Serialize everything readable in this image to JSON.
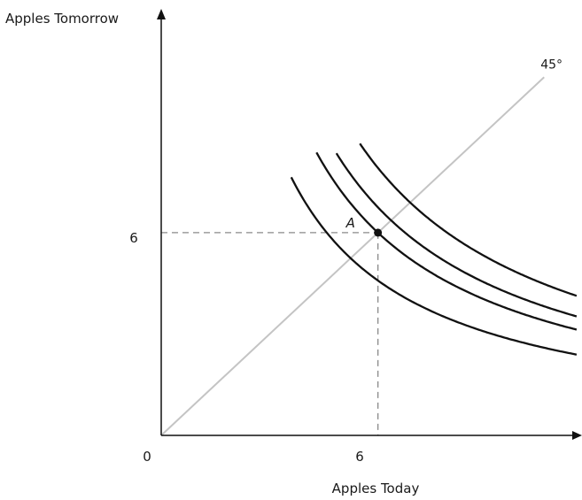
{
  "chart_data": {
    "type": "line",
    "ylabel": "Apples Tomorrow",
    "xlabel": "Apples Today",
    "origin_label": "0",
    "x_ticks": [
      "6"
    ],
    "y_ticks": [
      "6"
    ],
    "xlim": [
      0,
      11.6
    ],
    "ylim": [
      0,
      12.1
    ],
    "diagonal": {
      "label": "45°",
      "from": [
        0,
        0
      ],
      "to": [
        10.6,
        10.6
      ],
      "color": "#c4c4c4"
    },
    "point": {
      "label": "A",
      "x": 6,
      "y": 6
    },
    "guides": {
      "x": 6,
      "y": 6,
      "dashed": true,
      "color": "#8a8a8a"
    },
    "indifference_curves": [
      {
        "k": 27.5,
        "x": [
          3.6,
          11.5
        ]
      },
      {
        "k": 36.0,
        "x": [
          4.3,
          11.5
        ]
      },
      {
        "k": 40.5,
        "x": [
          4.85,
          11.5
        ]
      },
      {
        "k": 47.5,
        "x": [
          5.5,
          11.5
        ]
      }
    ],
    "curve_color": "#111111",
    "grid": false,
    "legend": "none"
  }
}
